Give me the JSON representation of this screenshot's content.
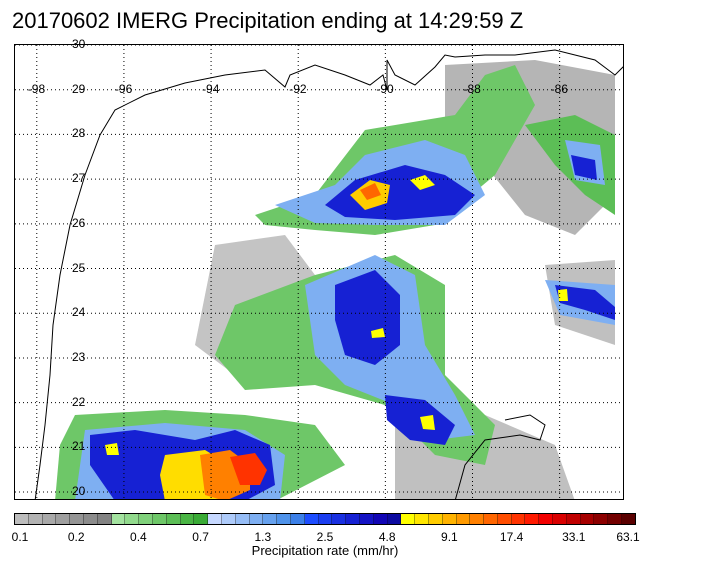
{
  "title": "20170602 IMERG Precipitation ending at 14:29:59 Z",
  "map": {
    "lon_labels": [
      "-98",
      "-96",
      "-94",
      "-92",
      "-90",
      "-88",
      "-86"
    ],
    "lat_labels": [
      "30",
      "29",
      "28",
      "27",
      "26",
      "25",
      "24",
      "23",
      "22",
      "21",
      "20"
    ],
    "lon_range": [
      -98.5,
      -84.5
    ],
    "lat_range": [
      19.8,
      30.0
    ],
    "gridlines": true
  },
  "colorbar": {
    "label": "Precipitation rate (mm/hr)",
    "tick_labels": [
      "0.1",
      "0.2",
      "0.4",
      "0.7",
      "1.3",
      "2.5",
      "4.8",
      "9.1",
      "17.4",
      "33.1",
      "63.1"
    ],
    "colors": [
      "#bdbdbd",
      "#b3b3b3",
      "#a9a9a9",
      "#9f9f9f",
      "#959595",
      "#8c8c8c",
      "#838383",
      "#a4e3a0",
      "#92da8d",
      "#80d17b",
      "#6ec768",
      "#5cbe56",
      "#4ab544",
      "#3aab36",
      "#c6d8ff",
      "#aecbfa",
      "#96bdf6",
      "#7eaff2",
      "#66a1ee",
      "#4f93ea",
      "#3c80e8",
      "#1d4dff",
      "#1b3ef0",
      "#1930e1",
      "#1621d3",
      "#1413c4",
      "#1105b5",
      "#0c0aa0",
      "#ffff00",
      "#ffe600",
      "#ffcc00",
      "#ffb300",
      "#ff9a00",
      "#ff8000",
      "#ff6600",
      "#ff4d00",
      "#ff3300",
      "#ff1a00",
      "#f20000",
      "#d90000",
      "#c00000",
      "#a60000",
      "#8c0000",
      "#730000",
      "#5a0000"
    ]
  }
}
